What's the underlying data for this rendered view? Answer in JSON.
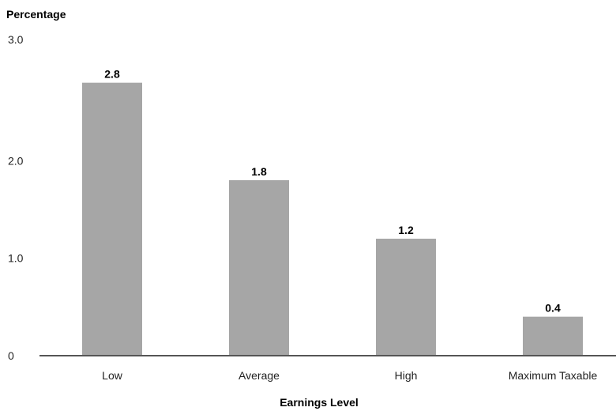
{
  "chart_data": {
    "type": "bar",
    "title": "",
    "ylabel": "Percentage",
    "xlabel": "Earnings Level",
    "categories": [
      "Low",
      "Average",
      "High",
      "Maximum Taxable"
    ],
    "values": [
      2.8,
      1.8,
      1.2,
      0.4
    ],
    "value_labels": [
      "2.8",
      "1.8",
      "1.2",
      "0.4"
    ],
    "ylim": [
      0,
      3.0
    ],
    "yticks": [
      {
        "value": 0,
        "label": "0"
      },
      {
        "value": 1.0,
        "label": "1.0"
      },
      {
        "value": 2.0,
        "label": "2.0"
      },
      {
        "value": 3.0,
        "label": "3.0"
      }
    ],
    "grid": false,
    "legend": "none",
    "colors": {
      "bar": "#a6a6a6",
      "axis": "#555555"
    }
  }
}
